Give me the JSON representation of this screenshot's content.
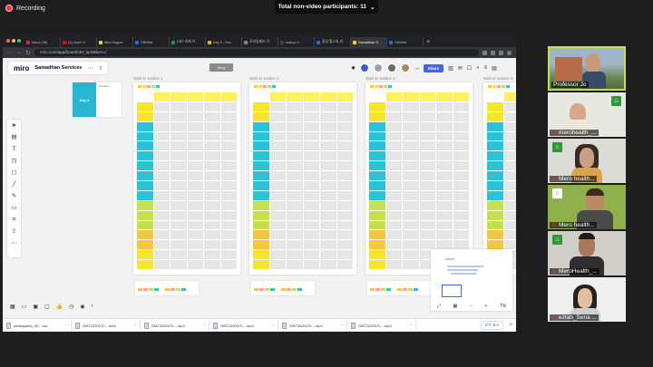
{
  "zoom": {
    "recording_label": "Recording",
    "participants_pill": "Total non-video participants: 11",
    "participants": [
      {
        "name": "Professor Jo",
        "muted": false
      },
      {
        "name": "merohealth_...",
        "muted": true
      },
      {
        "name": "Mero health...",
        "muted": true
      },
      {
        "name": "Mero health...",
        "muted": true
      },
      {
        "name": "MeroHealth_...",
        "muted": true
      },
      {
        "name": "eztab_Sena ...",
        "muted": true
      }
    ]
  },
  "browser": {
    "tabs": [
      {
        "label": "Inbox (39)",
        "color": "#d93025"
      },
      {
        "label": "(1) Zoom V",
        "color": "#ff0000"
      },
      {
        "label": "Miro Suppor",
        "color": "#ffd02f"
      },
      {
        "label": "HSWeb",
        "color": "#1a73e8"
      },
      {
        "label": "DEP 과제 키",
        "color": "#0f9d58"
      },
      {
        "label": "Day 3 - Sco",
        "color": "#f4b400"
      },
      {
        "label": "모바일제조 이",
        "color": "#888888"
      },
      {
        "label": "startup h",
        "color": "#444444"
      },
      {
        "label": "합성 헐스피 외",
        "color": "#1a73e8"
      },
      {
        "label": "Samadhan S",
        "color": "#ffd02f"
      },
      {
        "label": "HSWeb",
        "color": "#1a73e8"
      }
    ],
    "url": "miro.com/app/board/o9J_kpSBkuA=/"
  },
  "miro": {
    "logo": "miro",
    "board_name": "Samadhan Services",
    "share_label": "Share",
    "collab_count": "+3",
    "jinny_tag": "Jinny",
    "day_card": {
      "title": "Day 4",
      "subtitle": "Inspiration"
    },
    "frame_labels": [
      "Wall of Justice 1",
      "Wall of Justice 2",
      "Wall of Justice 3",
      "Wall of Justice 4"
    ],
    "zoom_level": "7%"
  },
  "downloads": {
    "items": [
      "participants_94....csv",
      "GMT2020070....m4a",
      "GMT2020070....mp4",
      "GMT2020070....mp4",
      "GMT2020070....mp4",
      "GMT2020070....mp4"
    ],
    "show_all": "모두 표시"
  }
}
